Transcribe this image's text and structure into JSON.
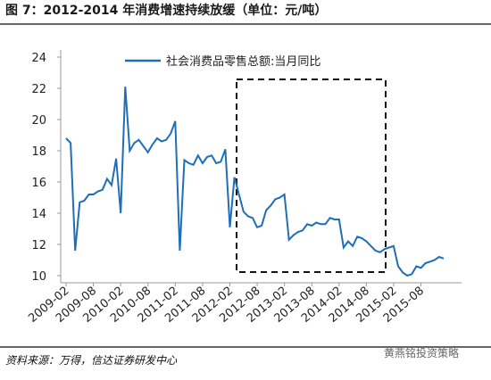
{
  "chart_data": {
    "type": "line",
    "title": "图 7：2012-2014 年消费增速持续放缓（单位：元/吨）",
    "categories": [
      "2009-02",
      null,
      null,
      null,
      null,
      null,
      "2009-08",
      null,
      null,
      null,
      null,
      null,
      "2010-02",
      null,
      null,
      null,
      null,
      null,
      "2010-08",
      null,
      null,
      null,
      null,
      null,
      "2011-02",
      null,
      null,
      null,
      null,
      null,
      "2011-08",
      null,
      null,
      null,
      null,
      null,
      "2012-02",
      null,
      null,
      null,
      null,
      null,
      "2012-08",
      null,
      null,
      null,
      null,
      null,
      "2013-02",
      null,
      null,
      null,
      null,
      null,
      "2013-08",
      null,
      null,
      null,
      null,
      null,
      "2014-02",
      null,
      null,
      null,
      null,
      null,
      "2014-08",
      null,
      null,
      null,
      null,
      null,
      "2015-02",
      null,
      null,
      null,
      null,
      null,
      "2015-08",
      null,
      null,
      null,
      null,
      null
    ],
    "series": [
      {
        "name": "社会消费品零售总额:当月同比",
        "color": "#1f6fb8",
        "values": [
          18.8,
          18.5,
          11.6,
          14.7,
          14.8,
          15.2,
          15.2,
          15.4,
          15.5,
          16.2,
          15.8,
          17.5,
          14.0,
          22.1,
          18.0,
          18.5,
          18.7,
          18.3,
          17.9,
          18.4,
          18.8,
          18.6,
          18.7,
          19.1,
          19.9,
          11.6,
          17.4,
          17.2,
          17.1,
          17.7,
          17.2,
          17.6,
          17.7,
          17.2,
          17.3,
          18.1,
          13.1,
          16.3,
          15.2,
          14.1,
          13.8,
          13.7,
          13.1,
          13.2,
          14.2,
          14.5,
          14.9,
          15.0,
          15.2,
          12.3,
          12.6,
          12.8,
          12.9,
          13.3,
          13.2,
          13.4,
          13.3,
          13.3,
          13.7,
          13.6,
          13.6,
          11.8,
          12.2,
          11.9,
          12.5,
          12.4,
          12.2,
          11.9,
          11.6,
          11.5,
          11.7,
          11.8,
          11.9,
          10.6,
          10.2,
          10.0,
          10.1,
          10.6,
          10.5,
          10.8,
          10.9,
          11.0,
          11.2,
          11.1
        ]
      }
    ],
    "ylim": [
      10,
      24
    ],
    "yticks": [
      10,
      12,
      14,
      16,
      18,
      20,
      22,
      24
    ],
    "legend": "top",
    "source": "资料来源：万得，信达证券研发中心",
    "watermark": "黄燕铭投资策略"
  }
}
